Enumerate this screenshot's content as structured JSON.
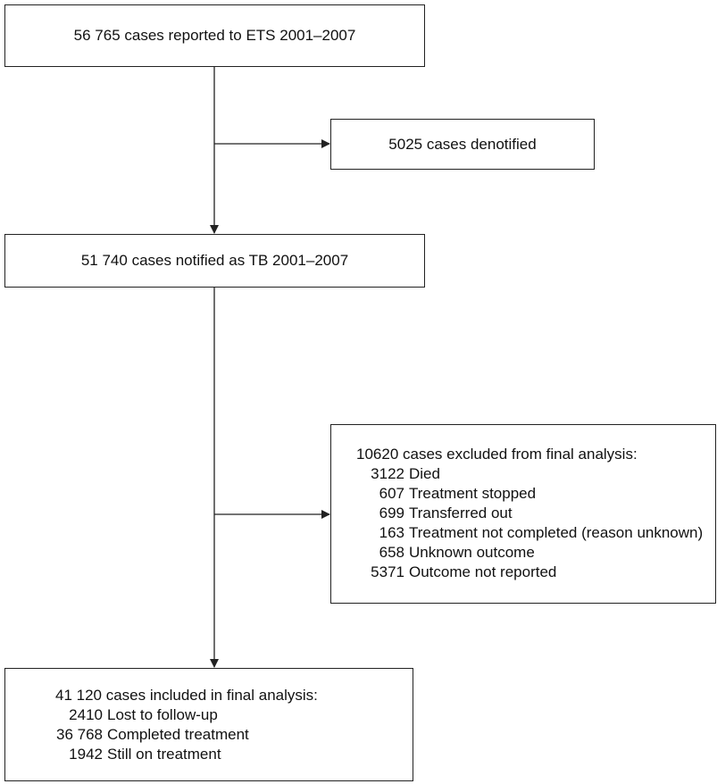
{
  "nodes": [
    {
      "label": "56 765 cases reported to ETS 2001–2007"
    },
    {
      "label": "5025 cases denotified"
    },
    {
      "label": "51 740 cases notified as TB 2001–2007"
    },
    {
      "label": "10620 cases excluded from final analysis:",
      "items": [
        {
          "count": "3122",
          "label": "Died"
        },
        {
          "count": "607",
          "label": "Treatment stopped"
        },
        {
          "count": "699",
          "label": "Transferred out"
        },
        {
          "count": "163",
          "label": "Treatment not completed (reason unknown)"
        },
        {
          "count": "658",
          "label": "Unknown outcome"
        },
        {
          "count": "5371",
          "label": "Outcome not reported"
        }
      ]
    },
    {
      "label": "41 120 cases included in final analysis:",
      "items": [
        {
          "count": "2410",
          "label": "Lost to follow-up"
        },
        {
          "count": "36 768",
          "label": "Completed treatment"
        },
        {
          "count": "1942",
          "label": "Still on treatment"
        }
      ]
    }
  ]
}
